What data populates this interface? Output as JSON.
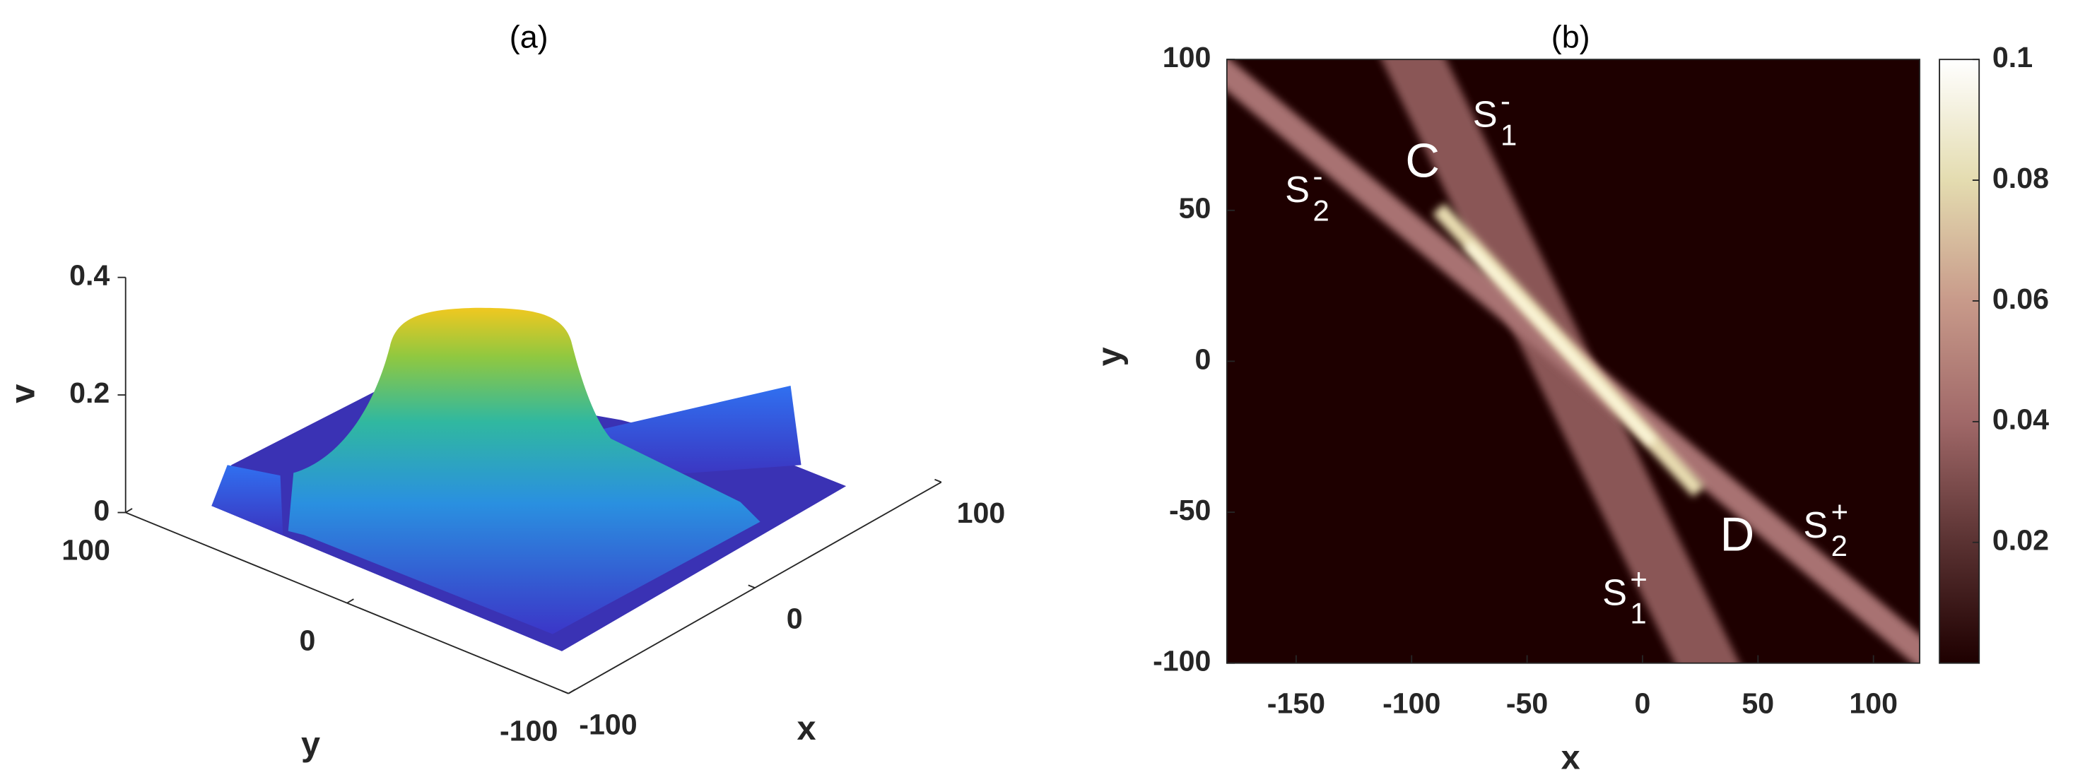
{
  "chart_data": [
    {
      "type": "surface",
      "title": "(a)",
      "xlabel": "x",
      "ylabel": "y",
      "zlabel": "v",
      "xlim": [
        -100,
        100
      ],
      "ylim": [
        -100,
        100
      ],
      "zlim": [
        0,
        0.4
      ],
      "xticks": [
        -100,
        0,
        100
      ],
      "yticks": [
        -100,
        0,
        100
      ],
      "zticks": [
        0,
        0.2,
        0.4
      ]
    },
    {
      "type": "heatmap",
      "title": "(b)",
      "xlabel": "x",
      "ylabel": "y",
      "xlim": [
        -180,
        120
      ],
      "ylim": [
        -100,
        100
      ],
      "clim": [
        0,
        0.1
      ],
      "xticks": [
        -150,
        -100,
        -50,
        0,
        50,
        100
      ],
      "yticks": [
        -100,
        -50,
        0,
        50,
        100
      ],
      "cticks": [
        0.02,
        0.04,
        0.06,
        0.08,
        0.1
      ],
      "colormap": [
        "#1e0000",
        "#5a3232",
        "#a06868",
        "#c89a8a",
        "#e4dcb0",
        "#ffffff"
      ],
      "annotations": [
        {
          "text": "C"
        },
        {
          "text": "D"
        },
        {
          "text": "S",
          "sup": "-",
          "sub": "1"
        },
        {
          "text": "S",
          "sup": "-",
          "sub": "2"
        },
        {
          "text": "S",
          "sup": "+",
          "sub": "1"
        },
        {
          "text": "S",
          "sup": "+",
          "sub": "2"
        }
      ]
    }
  ]
}
